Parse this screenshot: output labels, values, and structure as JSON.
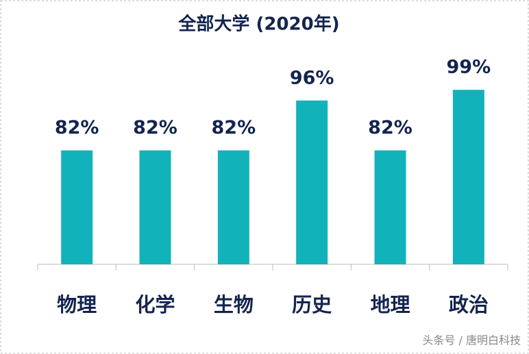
{
  "chart_data": {
    "type": "bar",
    "title": "全部大学 (2020年)",
    "categories": [
      "物理",
      "化学",
      "生物",
      "历史",
      "地理",
      "政治"
    ],
    "values": [
      82,
      82,
      82,
      96,
      82,
      99
    ],
    "value_labels": [
      "82%",
      "82%",
      "82%",
      "96%",
      "82%",
      "99%"
    ],
    "color": "#12b2bb",
    "ylim": [
      50,
      100
    ]
  },
  "watermark": "头条号 / 唐明白科技"
}
